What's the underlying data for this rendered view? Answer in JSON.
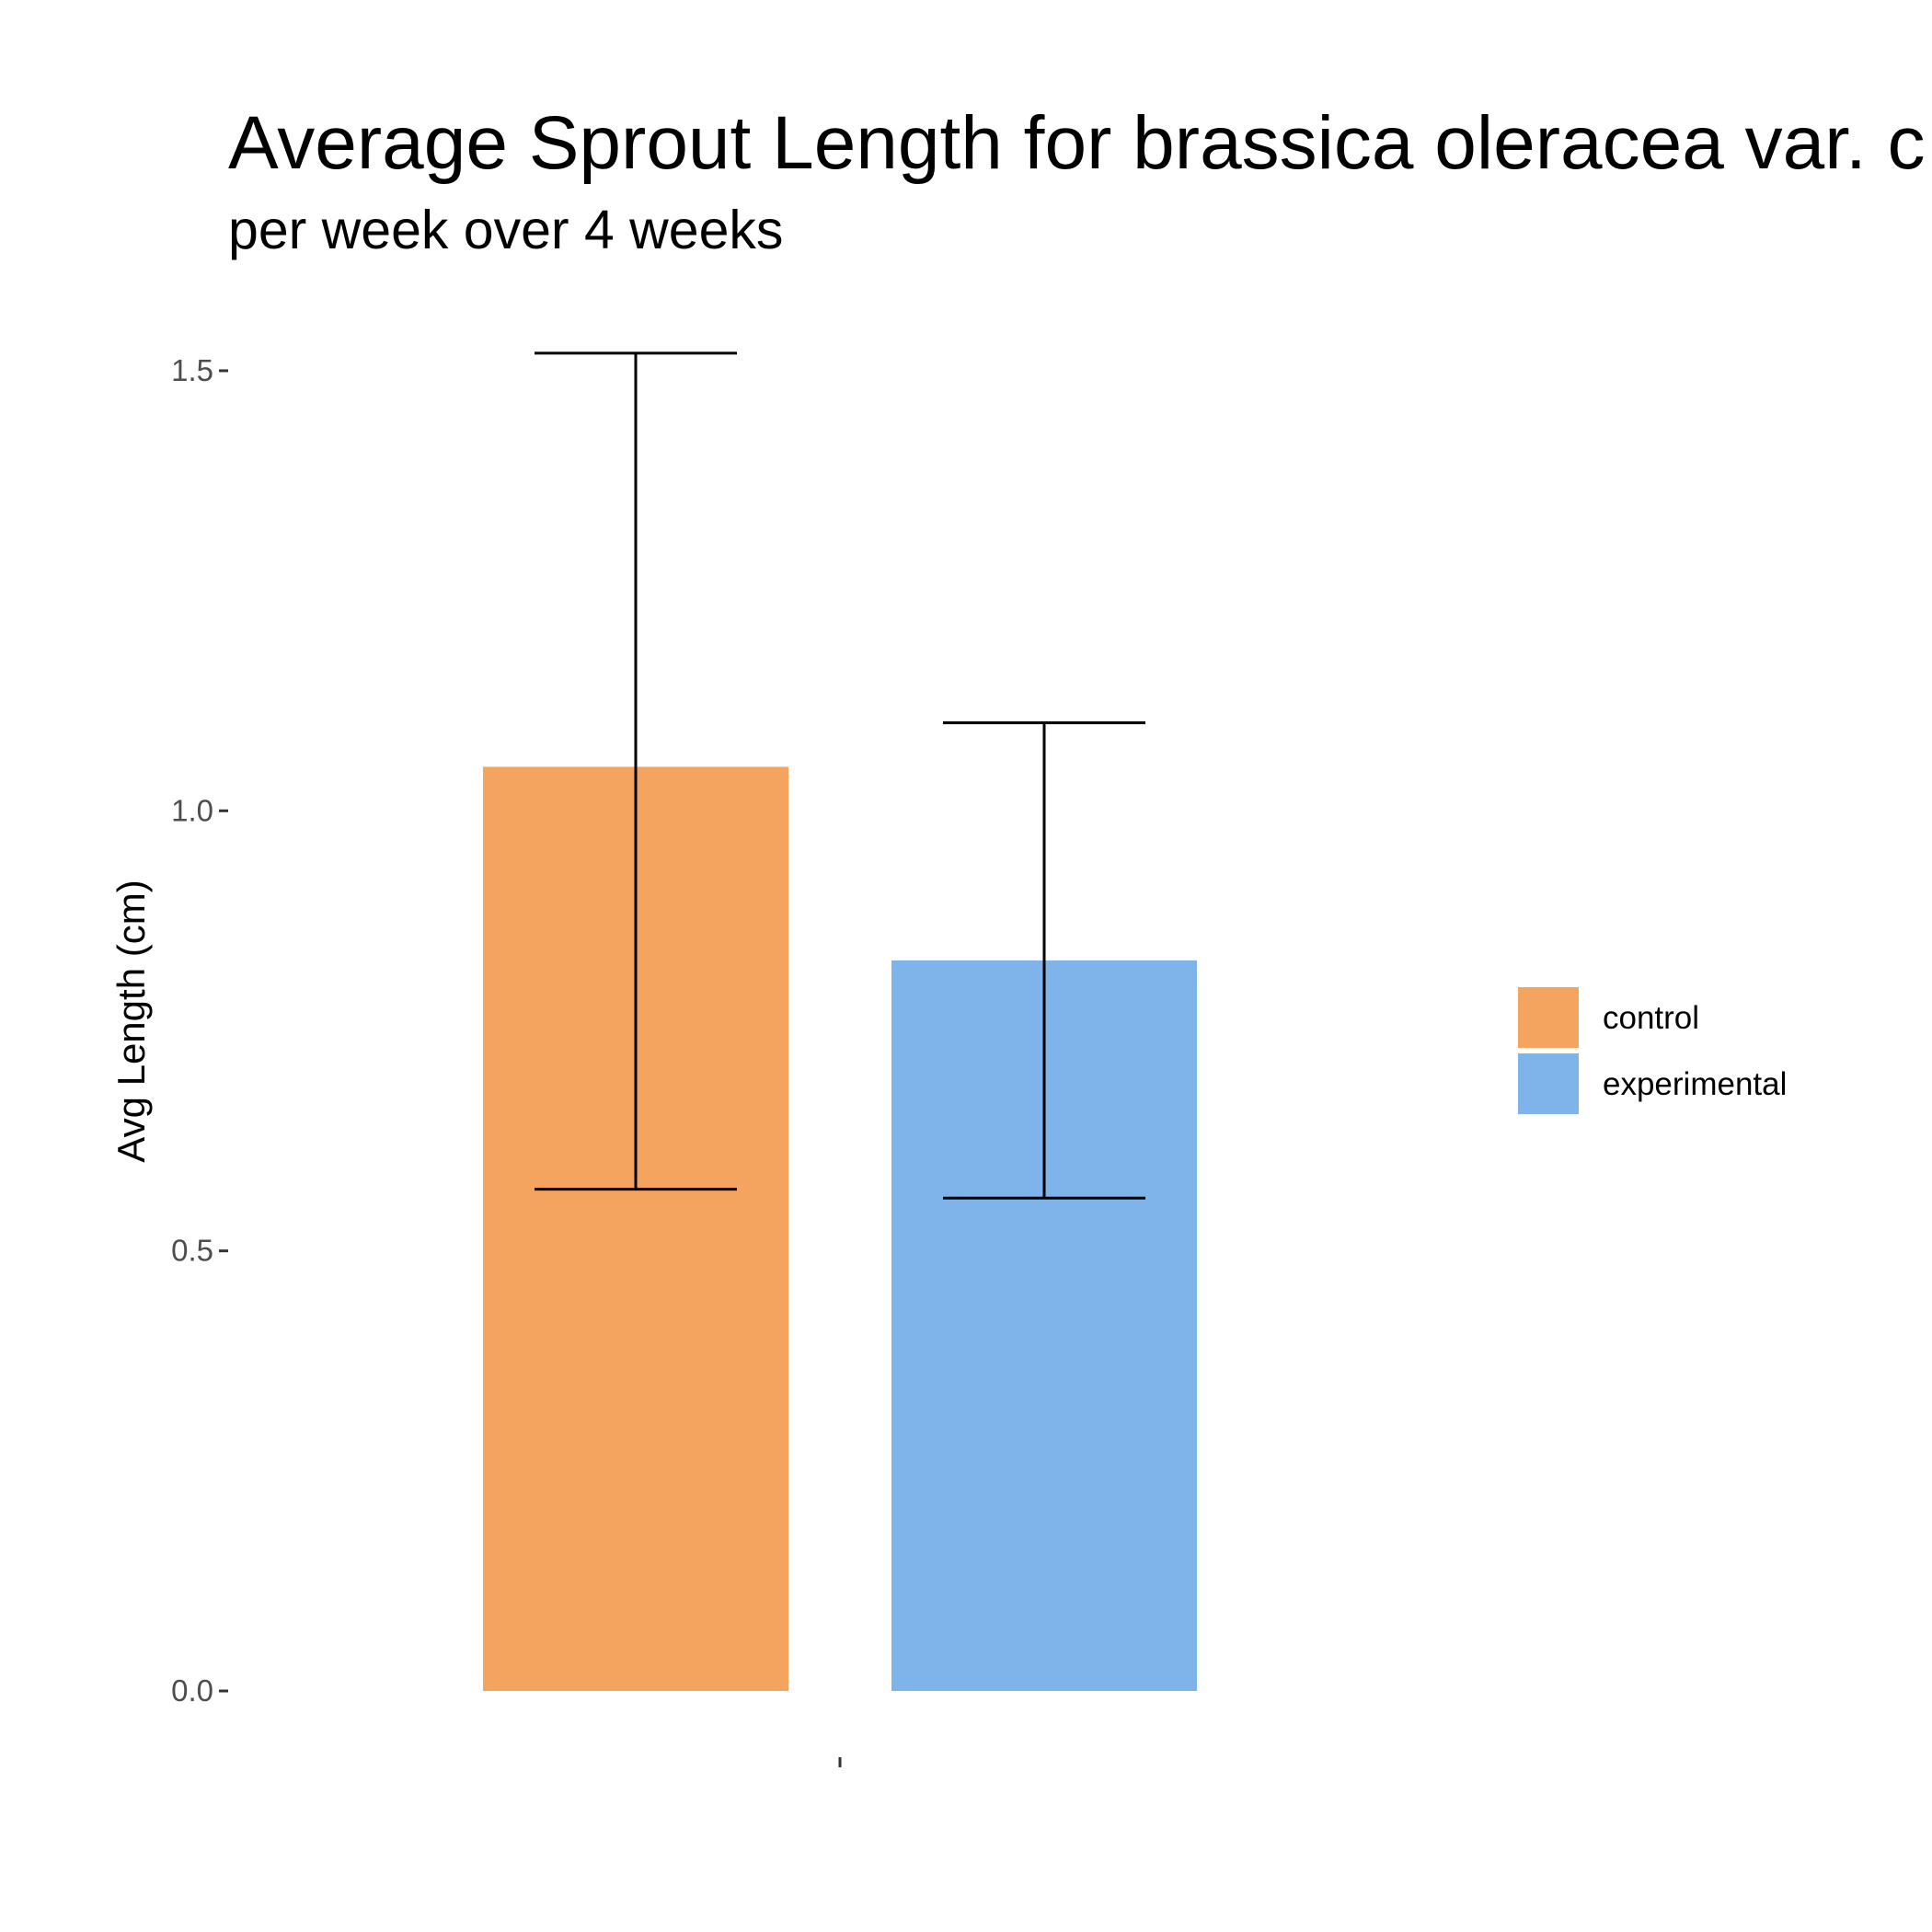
{
  "chart_data": {
    "type": "bar",
    "title": "Average Sprout Length for brassica oleracea var. c",
    "subtitle": "per week over 4 weeks",
    "xlabel": "",
    "ylabel": "Avg Length (cm)",
    "ylim": [
      0,
      1.56
    ],
    "y_ticks": [
      {
        "value": 0.0,
        "label": "0.0"
      },
      {
        "value": 0.5,
        "label": "0.5"
      },
      {
        "value": 1.0,
        "label": "1.0"
      },
      {
        "value": 1.5,
        "label": "1.5"
      }
    ],
    "categories": [
      ""
    ],
    "grid": false,
    "legend_position": "right",
    "series": [
      {
        "name": "control",
        "values": [
          1.05
        ],
        "error_low": [
          0.57
        ],
        "error_high": [
          1.52
        ],
        "color": "#F5A45F"
      },
      {
        "name": "experimental",
        "values": [
          0.83
        ],
        "error_low": [
          0.56
        ],
        "error_high": [
          1.1
        ],
        "color": "#7FB4EB"
      }
    ]
  }
}
